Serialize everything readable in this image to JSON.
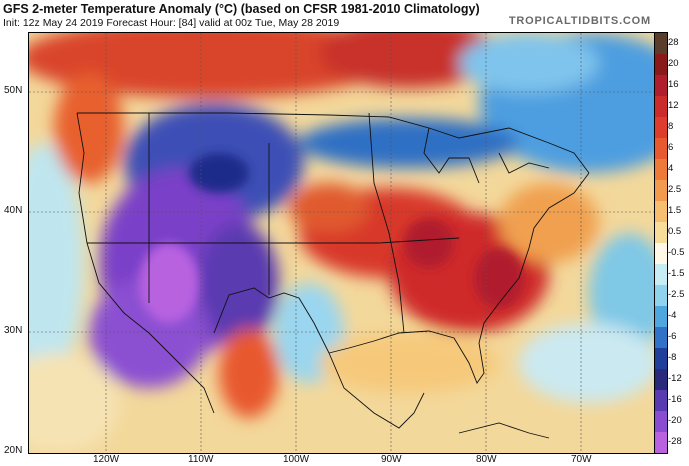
{
  "header": {
    "title": "GFS 2-meter Temperature Anomaly (°C) (based on CFSR 1981-2010 Climatology)",
    "subtitle": "Init: 12z May 24 2019   Forecast Hour: [84]   valid at 00z Tue, May 28 2019",
    "brand": "TROPICALTIDBITS.COM"
  },
  "axes": {
    "lat_labels": [
      "50N",
      "40N",
      "30N",
      "20N"
    ],
    "lon_labels": [
      "120W",
      "110W",
      "100W",
      "90W",
      "80W",
      "70W"
    ]
  },
  "colorbar": {
    "labels": [
      "28",
      "20",
      "16",
      "12",
      "8",
      "6",
      "4",
      "2.5",
      "1.5",
      "0.5",
      "-0.5",
      "-1.5",
      "-2.5",
      "-4",
      "-6",
      "-8",
      "-12",
      "-16",
      "-20",
      "-28"
    ],
    "colors": [
      "#5a3d2b",
      "#8a1a1a",
      "#b01e2e",
      "#cc2b2b",
      "#de3c2c",
      "#e8592f",
      "#ee7a3a",
      "#f29b4e",
      "#f6bf70",
      "#f8dc9a",
      "#fff8e6",
      "#c8ecf4",
      "#8fd4ec",
      "#4fa8dd",
      "#2f72c8",
      "#1f3f9a",
      "#2a2a7a",
      "#5a3ab0",
      "#8a4cd0",
      "#b862e0"
    ]
  }
}
